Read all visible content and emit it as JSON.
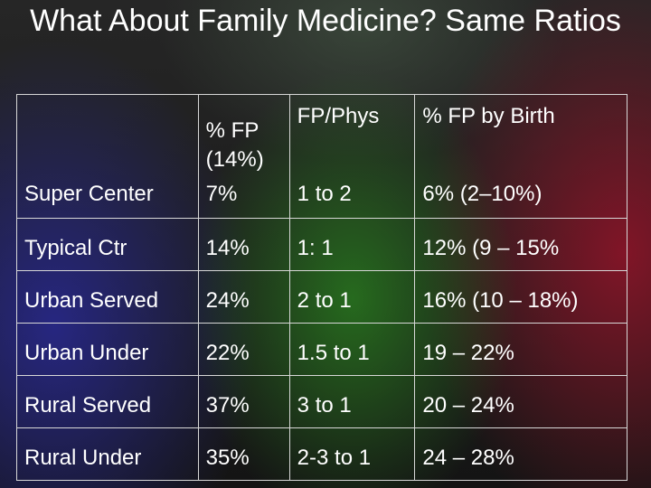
{
  "title": "What About Family Medicine? Same Ratios",
  "table": {
    "header": {
      "corner": "",
      "col1": "% FP (14%)",
      "col2": "FP/Phys",
      "col3": "% FP by Birth"
    },
    "rows": [
      {
        "label": "Super Center",
        "fp": "7%",
        "ratio": "1 to 2",
        "birth": "6% (2–10%)"
      },
      {
        "label": "Typical Ctr",
        "fp": "14%",
        "ratio": "1: 1",
        "birth": "12% (9 – 15%"
      },
      {
        "label": "Urban Served",
        "fp": "24%",
        "ratio": "2 to 1",
        "birth": "16% (10 – 18%)"
      },
      {
        "label": "Urban Under",
        "fp": "22%",
        "ratio": "1.5 to 1",
        "birth": "19 – 22%"
      },
      {
        "label": "Rural Served",
        "fp": "37%",
        "ratio": "3 to 1",
        "birth": "20 – 24%"
      },
      {
        "label": "Rural Under",
        "fp": "35%",
        "ratio": "2-3 to 1",
        "birth": "24 – 28%"
      }
    ]
  }
}
